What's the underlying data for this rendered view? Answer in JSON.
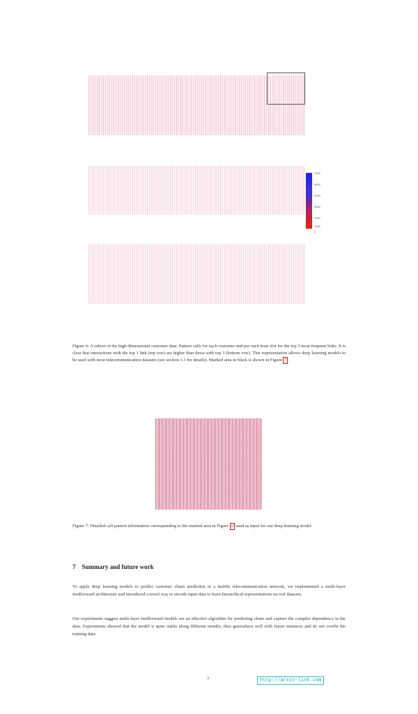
{
  "figure6": {
    "colorbar_ticks": [
      "7000",
      "5000",
      "4000",
      "3000",
      "2000",
      "1000",
      "0"
    ],
    "caption": "Figure 6: A subset of the high-dimensional customer data. Pattern calls for each customer and per each hour slot for the top 3 most frequent links. It is clear that interactions with the top 1 link (top row) are higher than those with top 3 (bottom row). This representation allows deep learning models to be used with most telecommunication datasets (see section 3.1 for details). Marked area in black is shown in Figure",
    "ref_number": "7",
    "caption_end": "."
  },
  "figure7": {
    "caption_start": "Figure 7: Detailed call pattern information corresponding to the marked area in Figure",
    "ref_number": "6",
    "caption_end": "used as input for our deep learning model."
  },
  "section": {
    "number": "7",
    "title": "Summary and future work",
    "paragraphs": [
      "To apply deep learning models to predict customer churn prediction in a mobile telecommunication network, we implemented a multi-layer feedforward architecture and introduced a novel way to encode input data to learn hierarchical representations on real datasets.",
      "Our experiments suggest multi-layer feedforward models are an effective algorithm for predicting churn and capture the complex dependency in the data. Experiments showed that the model is quite stable along different months, thus generalizes well with future instances and do not overfit the training data."
    ]
  },
  "footer": {
    "page_number": "7",
    "url": "http://arxiv-link.com"
  }
}
